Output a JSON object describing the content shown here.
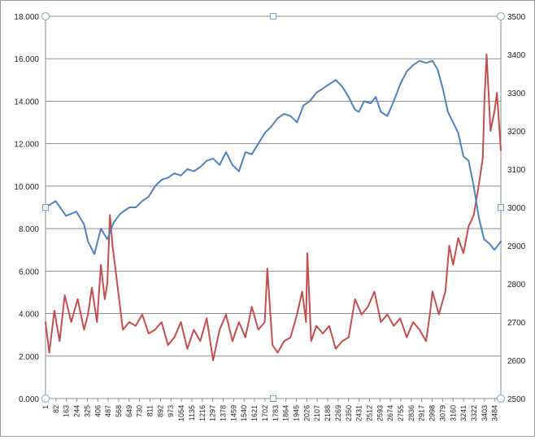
{
  "chart_data": {
    "type": "line",
    "title": "",
    "xlabel": "",
    "ylabel": "",
    "y_left_lim": [
      0,
      18
    ],
    "y_right_lim": [
      2500,
      3500
    ],
    "y_left_ticks": [
      "0.000",
      "2.000",
      "4.000",
      "6.000",
      "8.000",
      "10.000",
      "12.000",
      "14.000",
      "16.000",
      "18.000"
    ],
    "y_right_ticks": [
      "2500",
      "2600",
      "2700",
      "2800",
      "2900",
      "3000",
      "3100",
      "3200",
      "3300",
      "3400",
      "3500"
    ],
    "x_ticks": [
      "1",
      "82",
      "163",
      "244",
      "325",
      "406",
      "487",
      "568",
      "649",
      "730",
      "811",
      "892",
      "973",
      "1054",
      "1135",
      "1216",
      "1297",
      "1378",
      "1459",
      "1540",
      "1621",
      "1702",
      "1783",
      "1864",
      "1945",
      "2026",
      "2107",
      "2188",
      "2269",
      "2350",
      "2431",
      "2512",
      "2593",
      "2674",
      "2755",
      "2836",
      "2917",
      "2998",
      "3079",
      "3160",
      "3241",
      "3322",
      "3403",
      "3484"
    ],
    "x_range": [
      1,
      3530
    ],
    "grid": "horizontal",
    "series": [
      {
        "axis": "left",
        "color": "#4f81bd",
        "x": [
          1,
          80,
          160,
          240,
          300,
          330,
          380,
          430,
          480,
          530,
          580,
          650,
          700,
          750,
          800,
          850,
          900,
          950,
          1000,
          1050,
          1100,
          1150,
          1200,
          1250,
          1300,
          1350,
          1400,
          1450,
          1500,
          1550,
          1600,
          1650,
          1700,
          1750,
          1800,
          1850,
          1900,
          1950,
          2000,
          2050,
          2100,
          2150,
          2200,
          2250,
          2300,
          2350,
          2400,
          2430,
          2470,
          2520,
          2560,
          2600,
          2650,
          2700,
          2750,
          2800,
          2850,
          2900,
          2950,
          3000,
          3040,
          3080,
          3120,
          3160,
          3200,
          3240,
          3280,
          3320,
          3360,
          3400,
          3440,
          3480,
          3530
        ],
        "values": [
          9.0,
          9.3,
          8.6,
          8.8,
          8.2,
          7.4,
          6.8,
          8.0,
          7.5,
          8.3,
          8.7,
          9.0,
          9.0,
          9.3,
          9.5,
          10.0,
          10.3,
          10.4,
          10.6,
          10.5,
          10.8,
          10.7,
          10.9,
          11.2,
          11.3,
          11.0,
          11.6,
          11.0,
          10.7,
          11.6,
          11.5,
          12.0,
          12.5,
          12.8,
          13.2,
          13.4,
          13.3,
          13.0,
          13.8,
          14.0,
          14.4,
          14.6,
          14.8,
          15.0,
          14.7,
          14.2,
          13.6,
          13.5,
          14.0,
          13.9,
          14.2,
          13.5,
          13.3,
          14.0,
          14.8,
          15.4,
          15.7,
          15.9,
          15.8,
          15.9,
          15.5,
          14.6,
          13.5,
          13.0,
          12.5,
          11.4,
          11.2,
          10.0,
          8.5,
          7.5,
          7.3,
          7.0,
          7.4
        ]
      },
      {
        "axis": "right",
        "color": "#c0504d",
        "x": [
          1,
          30,
          70,
          110,
          150,
          200,
          250,
          300,
          330,
          360,
          400,
          430,
          460,
          480,
          500,
          520,
          550,
          600,
          650,
          700,
          750,
          800,
          850,
          900,
          950,
          1000,
          1050,
          1100,
          1150,
          1200,
          1250,
          1300,
          1350,
          1400,
          1450,
          1500,
          1550,
          1600,
          1650,
          1700,
          1720,
          1760,
          1800,
          1850,
          1900,
          1950,
          1990,
          2020,
          2030,
          2060,
          2100,
          2150,
          2200,
          2250,
          2300,
          2350,
          2400,
          2450,
          2500,
          2550,
          2600,
          2650,
          2700,
          2750,
          2800,
          2850,
          2900,
          2950,
          2980,
          3000,
          3050,
          3100,
          3130,
          3160,
          3200,
          3240,
          3280,
          3320,
          3360,
          3390,
          3403,
          3420,
          3450,
          3480,
          3500,
          3530
        ],
        "values": [
          2700,
          2620,
          2730,
          2650,
          2770,
          2700,
          2760,
          2680,
          2720,
          2790,
          2700,
          2850,
          2760,
          2800,
          2980,
          2900,
          2820,
          2680,
          2700,
          2690,
          2720,
          2670,
          2680,
          2700,
          2640,
          2660,
          2700,
          2630,
          2680,
          2650,
          2710,
          2600,
          2680,
          2720,
          2650,
          2700,
          2660,
          2740,
          2680,
          2700,
          2840,
          2640,
          2620,
          2650,
          2660,
          2720,
          2780,
          2700,
          2880,
          2650,
          2690,
          2670,
          2690,
          2630,
          2650,
          2660,
          2760,
          2720,
          2740,
          2780,
          2700,
          2720,
          2690,
          2710,
          2660,
          2700,
          2680,
          2650,
          2720,
          2780,
          2720,
          2780,
          2900,
          2850,
          2920,
          2880,
          2950,
          2980,
          3060,
          3130,
          3280,
          3400,
          3200,
          3250,
          3300,
          3150
        ]
      }
    ]
  }
}
